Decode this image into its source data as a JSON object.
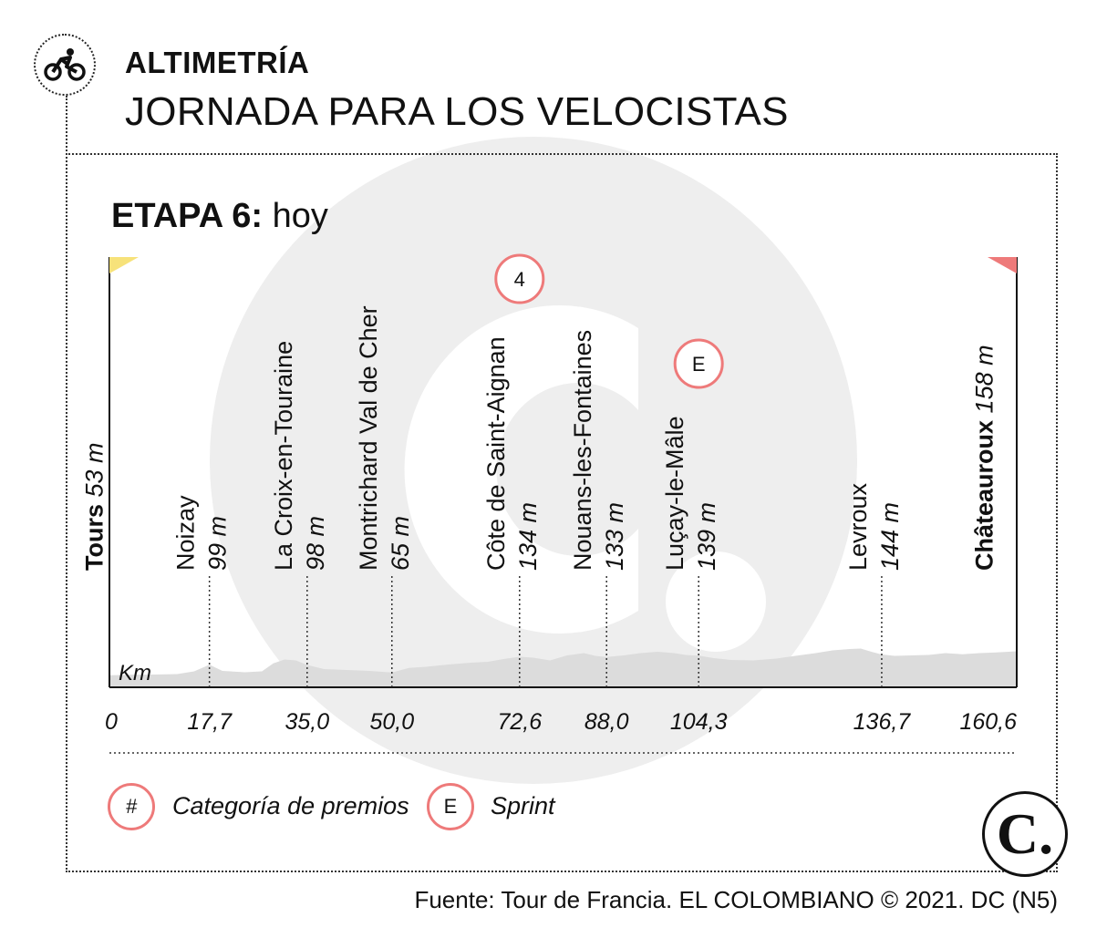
{
  "header": {
    "kicker": "ALTIMETRÍA",
    "title": "JORNADA PARA LOS VELOCISTAS",
    "icon": "cyclist-icon"
  },
  "stage": {
    "label": "ETAPA 6:",
    "when": "hoy"
  },
  "chart_data": {
    "type": "area",
    "xlabel": "Km",
    "xlim": [
      0,
      160.6
    ],
    "x_ticks": [
      "0",
      "17,7",
      "35,0",
      "50,0",
      "72,6",
      "88,0",
      "104,3",
      "136,7",
      "160,6"
    ],
    "start": {
      "name": "Tours",
      "altitude": "53 m",
      "km": 0,
      "flag_color": "#f7e27a"
    },
    "finish": {
      "name": "Châteauroux",
      "altitude": "158 m",
      "km": 160.6,
      "flag_color": "#ee7a7a"
    },
    "waypoints": [
      {
        "name": "Noizay",
        "altitude": "99 m",
        "km": 17.7
      },
      {
        "name": "La Croix-en-Touraine",
        "altitude": "98 m",
        "km": 35.0
      },
      {
        "name": "Montrichard Val de Cher",
        "altitude": "65 m",
        "km": 50.0
      },
      {
        "name": "Côte de Saint-Aignan",
        "altitude": "134 m",
        "km": 72.6,
        "badge": "4"
      },
      {
        "name": "Nouans-les-Fontaines",
        "altitude": "133 m",
        "km": 88.0
      },
      {
        "name": "Luçay-le-Mâle",
        "altitude": "139 m",
        "km": 104.3,
        "badge": "E"
      },
      {
        "name": "Levroux",
        "altitude": "144 m",
        "km": 136.7
      }
    ],
    "profile": [
      [
        0,
        53
      ],
      [
        4,
        55
      ],
      [
        8,
        56
      ],
      [
        12,
        58
      ],
      [
        15,
        70
      ],
      [
        17.7,
        99
      ],
      [
        20,
        72
      ],
      [
        24,
        66
      ],
      [
        27,
        70
      ],
      [
        29,
        105
      ],
      [
        31,
        122
      ],
      [
        33,
        118
      ],
      [
        35,
        98
      ],
      [
        38,
        80
      ],
      [
        42,
        76
      ],
      [
        46,
        72
      ],
      [
        50,
        65
      ],
      [
        53,
        85
      ],
      [
        56,
        90
      ],
      [
        60,
        100
      ],
      [
        64,
        108
      ],
      [
        67,
        112
      ],
      [
        70,
        125
      ],
      [
        72.6,
        134
      ],
      [
        75,
        130
      ],
      [
        78,
        118
      ],
      [
        81,
        140
      ],
      [
        84,
        150
      ],
      [
        86,
        138
      ],
      [
        88,
        133
      ],
      [
        91,
        140
      ],
      [
        94,
        150
      ],
      [
        97,
        156
      ],
      [
        100,
        150
      ],
      [
        102,
        142
      ],
      [
        104.3,
        139
      ],
      [
        107,
        128
      ],
      [
        110,
        120
      ],
      [
        114,
        118
      ],
      [
        118,
        126
      ],
      [
        122,
        140
      ],
      [
        125,
        150
      ],
      [
        128,
        162
      ],
      [
        131,
        168
      ],
      [
        133,
        170
      ],
      [
        135,
        155
      ],
      [
        136.7,
        144
      ],
      [
        139,
        138
      ],
      [
        142,
        140
      ],
      [
        145,
        142
      ],
      [
        148,
        150
      ],
      [
        151,
        145
      ],
      [
        154,
        150
      ],
      [
        157,
        153
      ],
      [
        160.6,
        158
      ]
    ],
    "profile_color": "#dcdcdc"
  },
  "legend": {
    "items": [
      {
        "symbol": "#",
        "label": "Categoría de premios"
      },
      {
        "symbol": "E",
        "label": "Sprint"
      }
    ]
  },
  "brand": {
    "logo_letter": "C.",
    "accent": "#ee7a7a"
  },
  "footer": {
    "source": "Fuente: Tour de Francia. EL COLOMBIANO © 2021. DC (N5)"
  }
}
